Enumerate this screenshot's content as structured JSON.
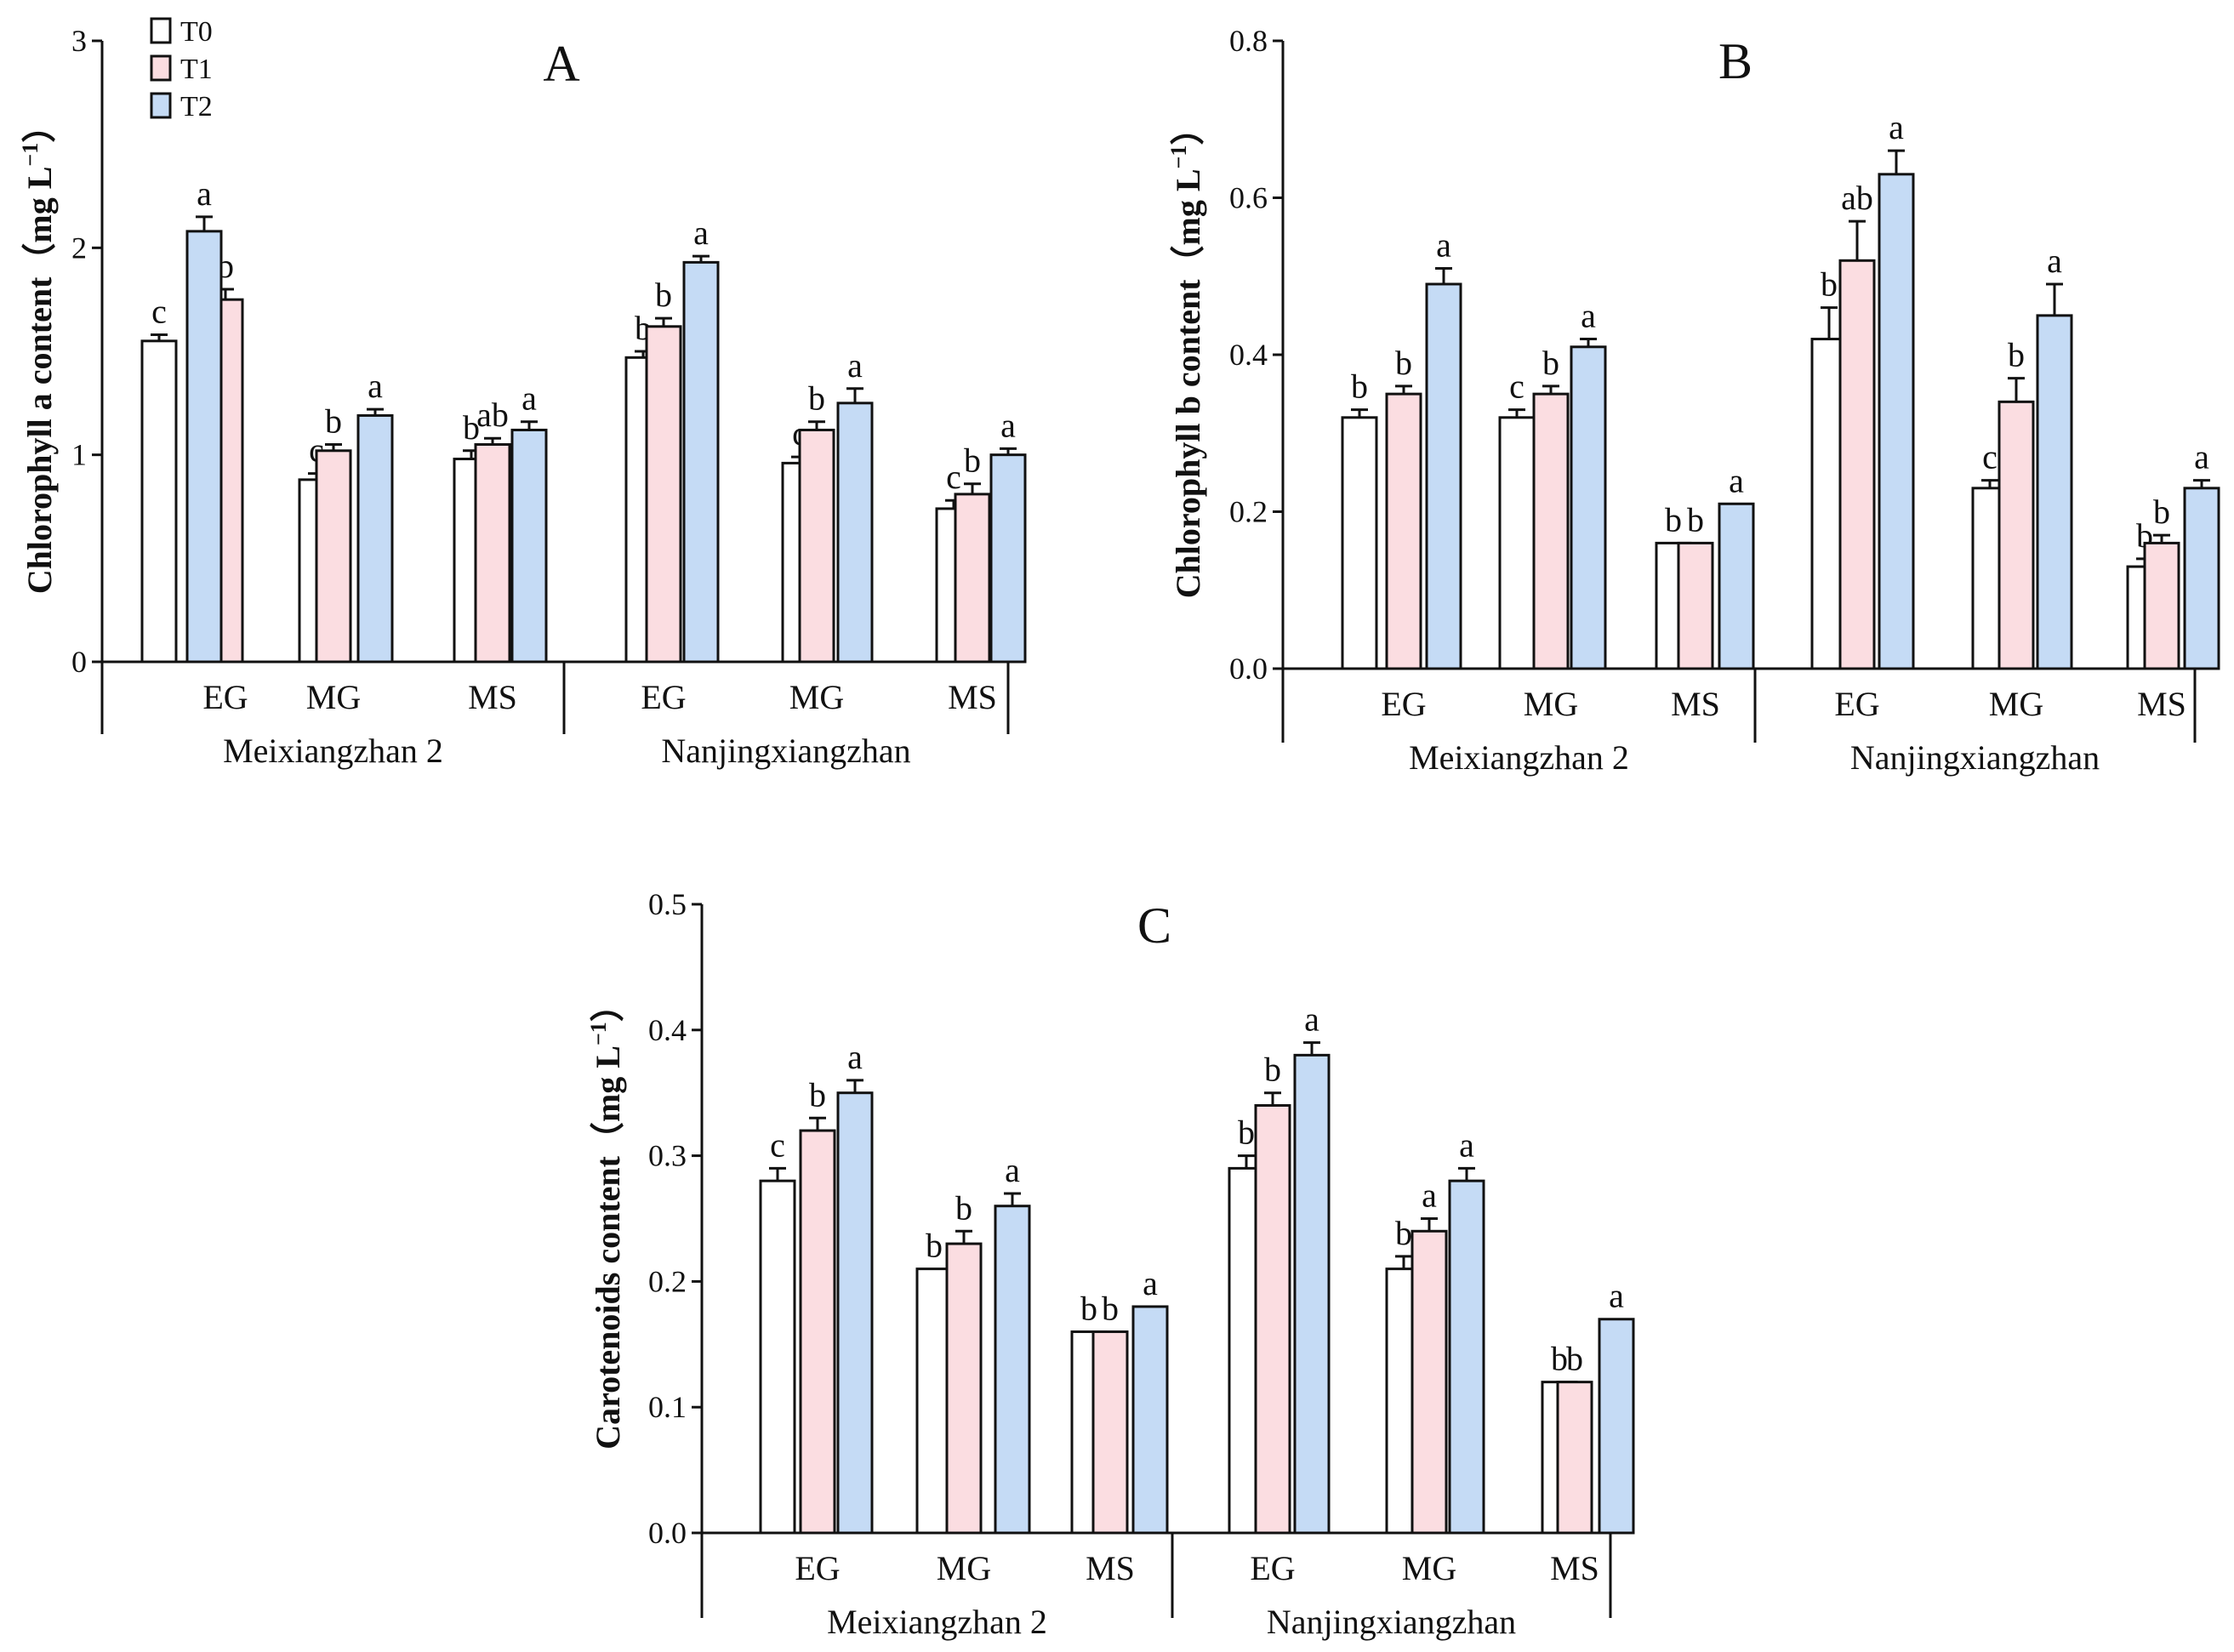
{
  "figure": {
    "legend": [
      {
        "name": "T0",
        "color": "#ffffff"
      },
      {
        "name": "T1",
        "color": "#fbdde1"
      },
      {
        "name": "T2",
        "color": "#c5dbf5"
      }
    ]
  },
  "chart_data": [
    {
      "type": "bar",
      "panel": "A",
      "title": "A",
      "ylabel_main": "Chlorophyll a content（mg L",
      "ylabel_sup": "−1",
      "ylabel_end": "）",
      "ylim": [
        0,
        3
      ],
      "yticks": [
        0,
        1,
        2,
        3
      ],
      "ytick_labels": [
        "0",
        "1",
        "2",
        "3"
      ],
      "groups": [
        {
          "name": "Meixiangzhan 2",
          "categories": [
            "EG",
            "MG",
            "MS"
          ]
        },
        {
          "name": "Nanjingxiangzhan",
          "categories": [
            "EG",
            "MG",
            "MS"
          ]
        }
      ],
      "series": [
        {
          "name": "T0",
          "values": [
            1.55,
            0.88,
            0.98,
            1.47,
            0.96,
            0.74
          ],
          "errors": [
            0.03,
            0.03,
            0.04,
            0.03,
            0.03,
            0.04
          ],
          "letters": [
            "c",
            "c",
            "b",
            "b",
            "c",
            "c"
          ]
        },
        {
          "name": "T1",
          "values": [
            1.75,
            1.02,
            1.05,
            1.62,
            1.12,
            0.81
          ],
          "errors": [
            0.05,
            0.03,
            0.03,
            0.04,
            0.04,
            0.05
          ],
          "letters": [
            "b",
            "b",
            "ab",
            "b",
            "b",
            "b"
          ]
        },
        {
          "name": "T2",
          "values": [
            2.08,
            1.19,
            1.12,
            1.93,
            1.25,
            1.0
          ],
          "errors": [
            0.07,
            0.03,
            0.04,
            0.03,
            0.07,
            0.03
          ],
          "letters": [
            "a",
            "a",
            "a",
            "a",
            "a",
            "a"
          ]
        }
      ]
    },
    {
      "type": "bar",
      "panel": "B",
      "title": "B",
      "ylabel_main": "Chlorophyll b content（mg L",
      "ylabel_sup": "−1",
      "ylabel_end": "）",
      "ylim": [
        0,
        0.8
      ],
      "yticks": [
        0,
        0.2,
        0.4,
        0.6,
        0.8
      ],
      "ytick_labels": [
        "0.0",
        "0.2",
        "0.4",
        "0.6",
        "0.8"
      ],
      "groups": [
        {
          "name": "Meixiangzhan 2",
          "categories": [
            "EG",
            "MG",
            "MS"
          ]
        },
        {
          "name": "Nanjingxiangzhan",
          "categories": [
            "EG",
            "MG",
            "MS"
          ]
        }
      ],
      "series": [
        {
          "name": "T0",
          "values": [
            0.32,
            0.32,
            0.16,
            0.42,
            0.23,
            0.13
          ],
          "errors": [
            0.01,
            0.01,
            0,
            0.04,
            0.01,
            0.01
          ],
          "letters": [
            "b",
            "c",
            "b",
            "b",
            "c",
            "b"
          ]
        },
        {
          "name": "T1",
          "values": [
            0.35,
            0.35,
            0.16,
            0.52,
            0.34,
            0.16
          ],
          "errors": [
            0.01,
            0.01,
            0,
            0.05,
            0.03,
            0.01
          ],
          "letters": [
            "b",
            "b",
            "b",
            "ab",
            "b",
            "b"
          ]
        },
        {
          "name": "T2",
          "values": [
            0.49,
            0.41,
            0.21,
            0.63,
            0.45,
            0.23
          ],
          "errors": [
            0.02,
            0.01,
            0,
            0.03,
            0.04,
            0.01
          ],
          "letters": [
            "a",
            "a",
            "a",
            "a",
            "a",
            "a"
          ]
        }
      ]
    },
    {
      "type": "bar",
      "panel": "C",
      "title": "C",
      "ylabel_main": "Carotenoids content（mg L",
      "ylabel_sup": "−1",
      "ylabel_end": "）",
      "ylim": [
        0,
        0.5
      ],
      "yticks": [
        0,
        0.1,
        0.2,
        0.3,
        0.4,
        0.5
      ],
      "ytick_labels": [
        "0.0",
        "0.1",
        "0.2",
        "0.3",
        "0.4",
        "0.5"
      ],
      "groups": [
        {
          "name": "Meixiangzhan 2",
          "categories": [
            "EG",
            "MG",
            "MS"
          ]
        },
        {
          "name": "Nanjingxiangzhan",
          "categories": [
            "EG",
            "MG",
            "MS"
          ]
        }
      ],
      "series": [
        {
          "name": "T0",
          "values": [
            0.28,
            0.21,
            0.16,
            0.29,
            0.21,
            0.12
          ],
          "errors": [
            0.01,
            0,
            0,
            0.01,
            0.01,
            0
          ],
          "letters": [
            "c",
            "b",
            "b",
            "b",
            "b",
            "b"
          ]
        },
        {
          "name": "T1",
          "values": [
            0.32,
            0.23,
            0.16,
            0.34,
            0.24,
            0.12
          ],
          "errors": [
            0.01,
            0.01,
            0,
            0.01,
            0.01,
            0
          ],
          "letters": [
            "b",
            "b",
            "b",
            "b",
            "a",
            "b"
          ]
        },
        {
          "name": "T2",
          "values": [
            0.35,
            0.26,
            0.18,
            0.38,
            0.28,
            0.17
          ],
          "errors": [
            0.01,
            0.01,
            0,
            0.01,
            0.01,
            0
          ],
          "letters": [
            "a",
            "a",
            "a",
            "a",
            "a",
            "a"
          ]
        }
      ]
    }
  ]
}
